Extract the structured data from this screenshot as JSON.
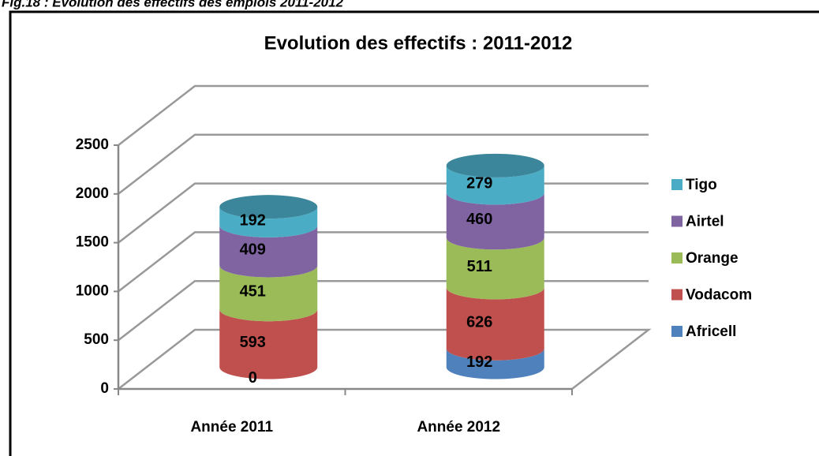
{
  "caption": "Fig.18 : Evolution des effectifs des emplois 2011-2012",
  "chart_data": {
    "type": "bar",
    "stacked": true,
    "title": "Evolution des effectifs : 2011-2012",
    "categories": [
      "Année 2011",
      "Année 2012"
    ],
    "series": [
      {
        "name": "Africell",
        "color": "#4f81bd",
        "values": [
          0,
          192
        ]
      },
      {
        "name": "Vodacom",
        "color": "#c0504d",
        "values": [
          593,
          626
        ]
      },
      {
        "name": "Orange",
        "color": "#9bbb59",
        "values": [
          451,
          511
        ]
      },
      {
        "name": "Airtel",
        "color": "#8064a2",
        "values": [
          409,
          460
        ]
      },
      {
        "name": "Tigo",
        "color": "#4bacc6",
        "values": [
          192,
          279
        ]
      }
    ],
    "ylim": [
      0,
      2500
    ],
    "yticks": [
      0,
      500,
      1000,
      1500,
      2000,
      2500
    ],
    "grid": true,
    "legend": "right"
  }
}
